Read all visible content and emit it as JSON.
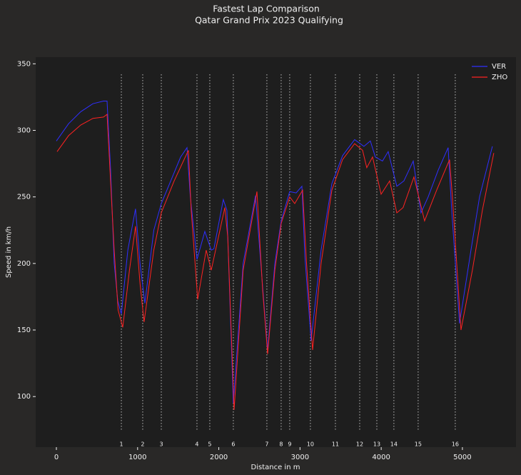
{
  "chart_data": {
    "type": "line",
    "title": "Fastest Lap Comparison",
    "subtitle": "Qatar Grand Prix 2023 Qualifying",
    "x_label": "Distance in m",
    "y_label": "Speed in km/h",
    "xlim": [
      -255,
      5660
    ],
    "ylim": [
      62,
      355
    ],
    "xticks": [
      0,
      1000,
      2000,
      3000,
      4000,
      5000
    ],
    "yticks": [
      100,
      150,
      200,
      250,
      300,
      350
    ],
    "legend": "upper right",
    "corners": [
      {
        "number": 1,
        "distance": 800
      },
      {
        "number": 2,
        "distance": 1063
      },
      {
        "number": 3,
        "distance": 1292
      },
      {
        "number": 4,
        "distance": 1731
      },
      {
        "number": 5,
        "distance": 1889
      },
      {
        "number": 6,
        "distance": 2179
      },
      {
        "number": 7,
        "distance": 2592
      },
      {
        "number": 8,
        "distance": 2768
      },
      {
        "number": 9,
        "distance": 2873
      },
      {
        "number": 10,
        "distance": 3128
      },
      {
        "number": 11,
        "distance": 3436
      },
      {
        "number": 12,
        "distance": 3735
      },
      {
        "number": 13,
        "distance": 3946
      },
      {
        "number": 14,
        "distance": 4156
      },
      {
        "number": 15,
        "distance": 4455
      },
      {
        "number": 16,
        "distance": 4912
      }
    ],
    "series": [
      {
        "name": "VER",
        "color": "#2f2fff",
        "x": [
          0,
          150,
          300,
          450,
          580,
          624,
          668,
          712,
          756,
          800,
          880,
          975,
          1030,
          1090,
          1200,
          1292,
          1415,
          1530,
          1608,
          1650,
          1731,
          1828,
          1907,
          1940,
          2056,
          2100,
          2179,
          2300,
          2452,
          2530,
          2601,
          2690,
          2768,
          2873,
          2952,
          3023,
          3060,
          3137,
          3260,
          3392,
          3524,
          3673,
          3787,
          3866,
          3928,
          4016,
          4086,
          4192,
          4279,
          4394,
          4490,
          4578,
          4701,
          4824,
          4868,
          4965,
          5105,
          5211,
          5369
        ],
        "values": [
          292,
          305,
          314,
          320,
          322,
          322,
          270,
          200,
          172,
          162,
          210,
          241,
          200,
          170,
          225,
          245,
          263,
          280,
          287,
          250,
          203,
          224,
          210,
          211,
          248,
          240,
          95,
          200,
          251,
          190,
          135,
          200,
          232,
          254,
          253,
          258,
          205,
          142,
          210,
          260,
          281,
          293,
          288,
          292,
          280,
          277,
          284,
          258,
          262,
          277,
          238,
          250,
          270,
          287,
          240,
          155,
          210,
          250,
          288
        ]
      },
      {
        "name": "ZHO",
        "color": "#ff2222",
        "x": [
          9,
          150,
          300,
          450,
          580,
          624,
          712,
          760,
          817,
          900,
          975,
          1030,
          1080,
          1200,
          1292,
          1450,
          1626,
          1660,
          1740,
          1845,
          1907,
          2074,
          2110,
          2188,
          2300,
          2470,
          2540,
          2601,
          2690,
          2768,
          2873,
          2935,
          3032,
          3080,
          3155,
          3260,
          3392,
          3524,
          3673,
          3770,
          3822,
          3893,
          3999,
          4104,
          4192,
          4270,
          4403,
          4534,
          4683,
          4842,
          4877,
          4982,
          5123,
          5246,
          5387
        ],
        "values": [
          284,
          296,
          304,
          309,
          310,
          312,
          210,
          165,
          152,
          195,
          228,
          185,
          156,
          210,
          238,
          262,
          285,
          240,
          173,
          210,
          195,
          242,
          220,
          90,
          195,
          254,
          180,
          132,
          195,
          230,
          250,
          245,
          255,
          200,
          135,
          200,
          255,
          278,
          290,
          285,
          272,
          280,
          252,
          262,
          238,
          242,
          265,
          232,
          255,
          278,
          250,
          150,
          195,
          240,
          283
        ]
      }
    ]
  }
}
